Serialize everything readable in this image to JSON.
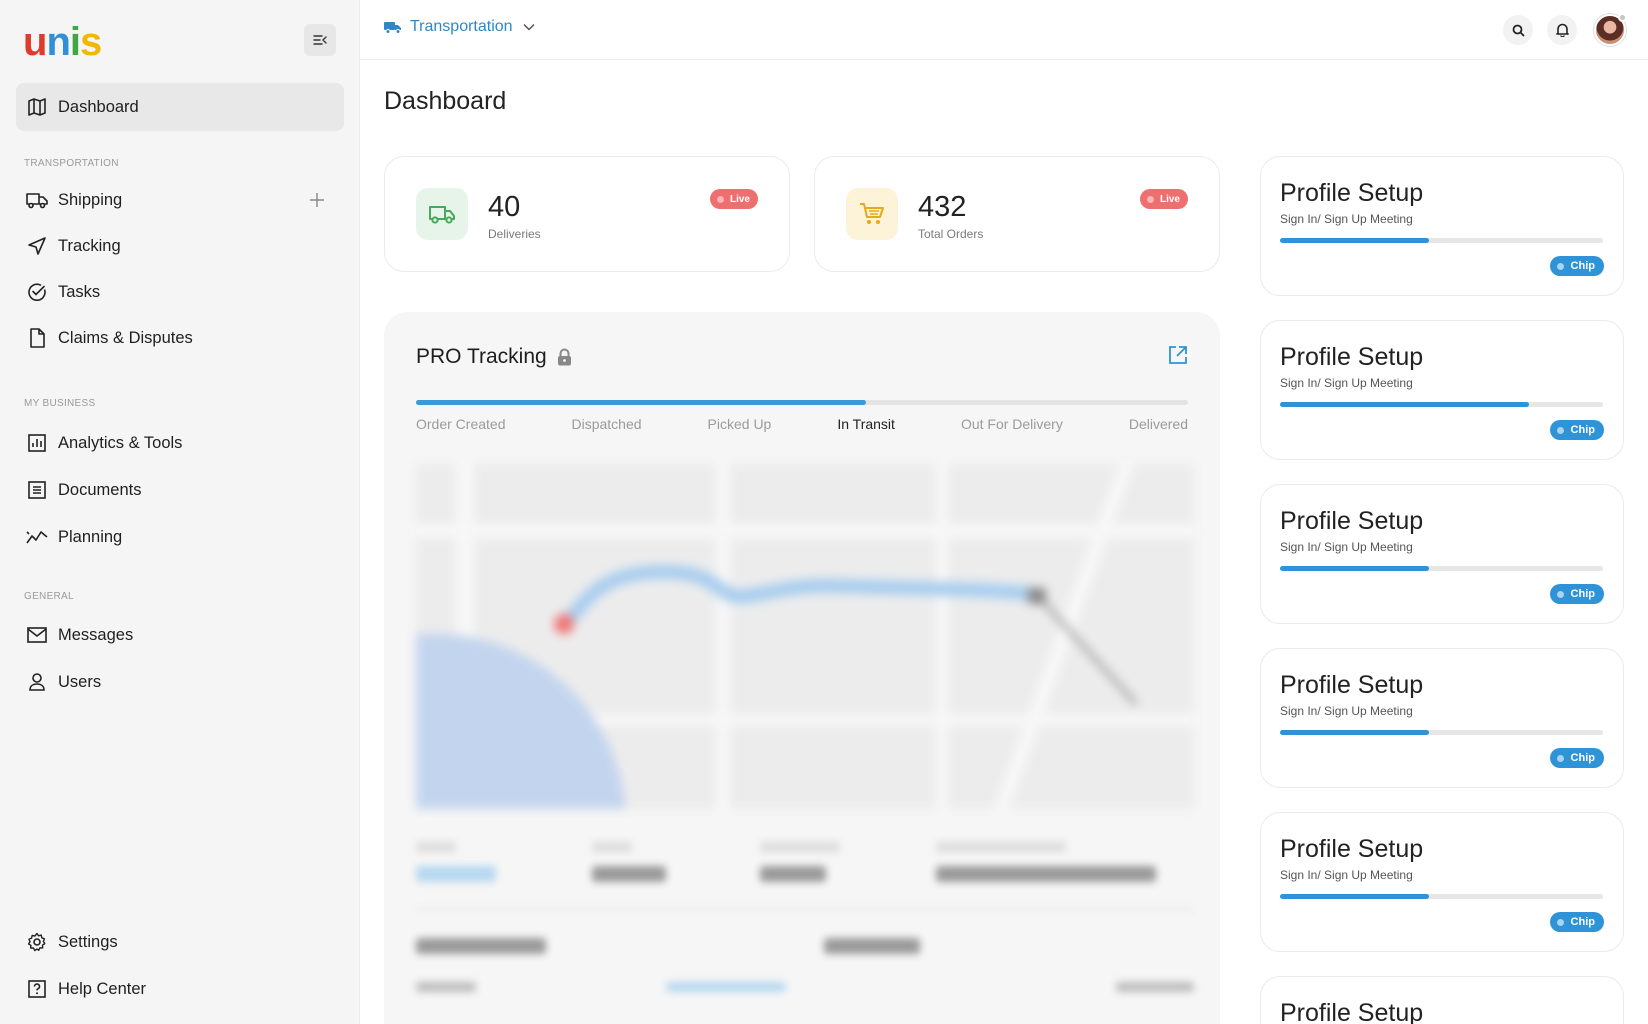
{
  "brand": {
    "logo_letters": [
      {
        "ch": "u",
        "color": "#e03a2f"
      },
      {
        "ch": "n",
        "color": "#2f8fd8"
      },
      {
        "ch": "i",
        "color": "#41a745"
      },
      {
        "ch": "s",
        "color": "#f2b705"
      }
    ]
  },
  "sidebar": {
    "collapse_icon": "collapse-sidebar-icon",
    "dashboard": "Dashboard",
    "sections": {
      "transportation": "TRANSPORTATION",
      "my_business": "MY BUSINESS",
      "general": "GENERAL"
    },
    "items": {
      "shipping": "Shipping",
      "tracking": "Tracking",
      "tasks": "Tasks",
      "claims": "Claims & Disputes",
      "analytics": "Analytics & Tools",
      "documents": "Documents",
      "planning": "Planning",
      "messages": "Messages",
      "users": "Users",
      "settings": "Settings",
      "help": "Help Center"
    }
  },
  "topbar": {
    "module": "Transportation",
    "icons": [
      "truck-icon",
      "chevron-down-icon",
      "search-icon",
      "bell-icon",
      "avatar"
    ]
  },
  "page": {
    "title": "Dashboard"
  },
  "stats": [
    {
      "value": "40",
      "label": "Deliveries",
      "badge": "Live",
      "icon": "truck-icon",
      "icon_bg": "#e6f4e9",
      "icon_color": "#46a85a"
    },
    {
      "value": "432",
      "label": "Total Orders",
      "badge": "Live",
      "icon": "cart-icon",
      "icon_bg": "#fdf3d8",
      "icon_color": "#e5a91a"
    }
  ],
  "tracking": {
    "title": "PRO Tracking",
    "progress": 0.583,
    "steps": [
      "Order Created",
      "Dispatched",
      "Picked Up",
      "In Transit",
      "Out For Delivery",
      "Delivered"
    ],
    "current_step": "In Transit"
  },
  "profile_cards": [
    {
      "title": "Profile Setup",
      "subtitle": "Sign In/ Sign Up Meeting",
      "progress": 0.46,
      "chip": "Chip"
    },
    {
      "title": "Profile Setup",
      "subtitle": "Sign In/ Sign Up Meeting",
      "progress": 0.77,
      "chip": "Chip"
    },
    {
      "title": "Profile Setup",
      "subtitle": "Sign In/ Sign Up Meeting",
      "progress": 0.46,
      "chip": "Chip"
    },
    {
      "title": "Profile Setup",
      "subtitle": "Sign In/ Sign Up Meeting",
      "progress": 0.46,
      "chip": "Chip"
    },
    {
      "title": "Profile Setup",
      "subtitle": "Sign In/ Sign Up Meeting",
      "progress": 0.46,
      "chip": "Chip"
    },
    {
      "title": "Profile Setup",
      "subtitle": "",
      "progress": 0,
      "chip": ""
    }
  ],
  "colors": {
    "accent": "#2f93d8",
    "live": "#ee6f6f"
  }
}
